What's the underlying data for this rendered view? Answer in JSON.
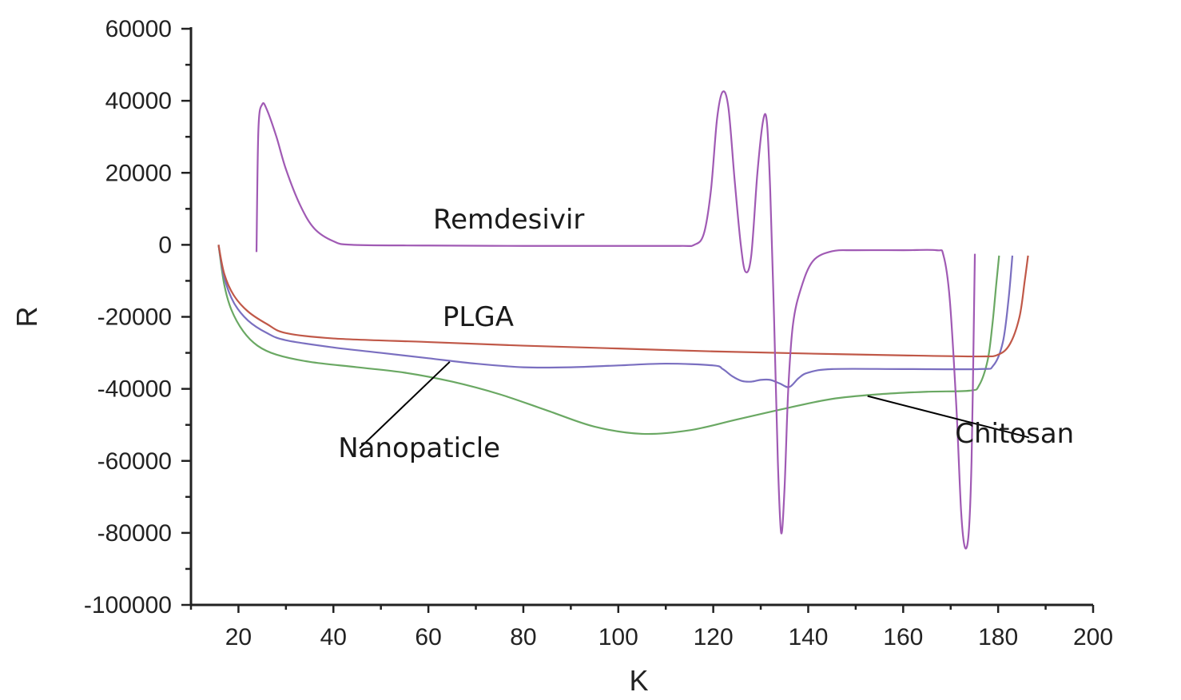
{
  "chart_data": {
    "type": "line",
    "xlabel": "K",
    "ylabel": "R",
    "xlim": [
      10,
      200
    ],
    "ylim": [
      -100000,
      60000
    ],
    "x_ticks": [
      20,
      40,
      60,
      80,
      100,
      120,
      140,
      160,
      180,
      200
    ],
    "y_ticks": [
      60000,
      40000,
      20000,
      0,
      -20000,
      -40000,
      -60000,
      -80000,
      -100000
    ],
    "y_tick_labels": [
      "60000",
      "40000",
      "20000",
      "0",
      "-20000",
      "-40000",
      "-60000",
      "-80000",
      "-100000"
    ],
    "grid": false,
    "series": [
      {
        "name": "Remdesivir",
        "color": "#a05ab4",
        "points": [
          [
            23.8,
            -2000
          ],
          [
            24.2,
            32000
          ],
          [
            25.0,
            39000
          ],
          [
            26.0,
            37500
          ],
          [
            28.0,
            30000
          ],
          [
            30.0,
            21000
          ],
          [
            33.0,
            11000
          ],
          [
            36.0,
            4500
          ],
          [
            40.0,
            1000
          ],
          [
            44.0,
            0
          ],
          [
            60.0,
            -200
          ],
          [
            80.0,
            -300
          ],
          [
            100.0,
            -300
          ],
          [
            113.0,
            -300
          ],
          [
            116.0,
            0
          ],
          [
            118.0,
            3000
          ],
          [
            119.5,
            15000
          ],
          [
            120.8,
            35000
          ],
          [
            122.0,
            42500
          ],
          [
            123.2,
            38000
          ],
          [
            124.5,
            18000
          ],
          [
            125.8,
            0
          ],
          [
            126.8,
            -7500
          ],
          [
            128.0,
            -3000
          ],
          [
            129.3,
            20000
          ],
          [
            130.5,
            34500
          ],
          [
            131.3,
            34000
          ],
          [
            132.0,
            15000
          ],
          [
            132.8,
            -20000
          ],
          [
            133.6,
            -60000
          ],
          [
            134.3,
            -80000
          ],
          [
            135.0,
            -68000
          ],
          [
            135.8,
            -40000
          ],
          [
            136.8,
            -22000
          ],
          [
            138.5,
            -12000
          ],
          [
            141.0,
            -4500
          ],
          [
            145.0,
            -1800
          ],
          [
            150.0,
            -1500
          ],
          [
            160.0,
            -1500
          ],
          [
            167.0,
            -1500
          ],
          [
            168.5,
            -3000
          ],
          [
            169.8,
            -15000
          ],
          [
            171.2,
            -45000
          ],
          [
            172.2,
            -74000
          ],
          [
            173.0,
            -84000
          ],
          [
            173.8,
            -80000
          ],
          [
            174.4,
            -60000
          ],
          [
            174.9,
            -20000
          ],
          [
            175.1,
            -2500
          ]
        ]
      },
      {
        "name": "PLGA",
        "color": "#c05848",
        "points": [
          [
            15.8,
            0
          ],
          [
            17.0,
            -8000
          ],
          [
            19.0,
            -14000
          ],
          [
            22.0,
            -18500
          ],
          [
            26.0,
            -22000
          ],
          [
            30.0,
            -24500
          ],
          [
            40.0,
            -26000
          ],
          [
            60.0,
            -27000
          ],
          [
            80.0,
            -28000
          ],
          [
            100.0,
            -28800
          ],
          [
            120.0,
            -29600
          ],
          [
            140.0,
            -30200
          ],
          [
            160.0,
            -30700
          ],
          [
            176.0,
            -31000
          ],
          [
            180.0,
            -30500
          ],
          [
            182.5,
            -27500
          ],
          [
            184.5,
            -20000
          ],
          [
            185.6,
            -10000
          ],
          [
            186.3,
            -3000
          ]
        ]
      },
      {
        "name": "Nanopaticle",
        "color": "#7a6fc0",
        "points": [
          [
            15.8,
            0
          ],
          [
            17.0,
            -9000
          ],
          [
            19.0,
            -16000
          ],
          [
            22.0,
            -21000
          ],
          [
            26.0,
            -24500
          ],
          [
            30.0,
            -26500
          ],
          [
            40.0,
            -28500
          ],
          [
            50.0,
            -30000
          ],
          [
            60.0,
            -31500
          ],
          [
            70.0,
            -33000
          ],
          [
            80.0,
            -34000
          ],
          [
            90.0,
            -34000
          ],
          [
            100.0,
            -33500
          ],
          [
            110.0,
            -33000
          ],
          [
            120.0,
            -33500
          ],
          [
            122.0,
            -34500
          ],
          [
            124.0,
            -36500
          ],
          [
            126.0,
            -37800
          ],
          [
            128.0,
            -38000
          ],
          [
            130.0,
            -37500
          ],
          [
            132.0,
            -37500
          ],
          [
            134.0,
            -38500
          ],
          [
            136.0,
            -39500
          ],
          [
            138.0,
            -37000
          ],
          [
            140.0,
            -35500
          ],
          [
            145.0,
            -34500
          ],
          [
            160.0,
            -34500
          ],
          [
            176.0,
            -34500
          ],
          [
            179.0,
            -33500
          ],
          [
            181.0,
            -27000
          ],
          [
            182.2,
            -15000
          ],
          [
            183.0,
            -3000
          ]
        ]
      },
      {
        "name": "Chitosan",
        "color": "#6aa863",
        "points": [
          [
            15.8,
            0
          ],
          [
            17.0,
            -11000
          ],
          [
            18.5,
            -18000
          ],
          [
            21.0,
            -24000
          ],
          [
            24.0,
            -28000
          ],
          [
            28.0,
            -30500
          ],
          [
            35.0,
            -32500
          ],
          [
            45.0,
            -34000
          ],
          [
            55.0,
            -35500
          ],
          [
            65.0,
            -38000
          ],
          [
            75.0,
            -41500
          ],
          [
            85.0,
            -46000
          ],
          [
            95.0,
            -50500
          ],
          [
            105.0,
            -52500
          ],
          [
            115.0,
            -51500
          ],
          [
            125.0,
            -48500
          ],
          [
            135.0,
            -45500
          ],
          [
            145.0,
            -42800
          ],
          [
            155.0,
            -41500
          ],
          [
            165.0,
            -40800
          ],
          [
            174.0,
            -40500
          ],
          [
            176.0,
            -39000
          ],
          [
            177.8,
            -32000
          ],
          [
            178.8,
            -22000
          ],
          [
            179.6,
            -11000
          ],
          [
            180.2,
            -3000
          ]
        ]
      }
    ],
    "annotations": [
      {
        "text": "Remdesivir",
        "series": "Remdesivir",
        "leader": false,
        "label_at": [
          61,
          4500
        ]
      },
      {
        "text": "PLGA",
        "series": "PLGA",
        "leader": false,
        "label_at": [
          63,
          -22500
        ]
      },
      {
        "text": "Nanopaticle",
        "series": "Nanopaticle",
        "leader": true,
        "label_at": [
          41,
          -59000
        ],
        "leader_from": [
          45.5,
          -56500
        ],
        "leader_to": [
          64.5,
          -32500
        ]
      },
      {
        "text": "Chitosan",
        "series": "Chitosan",
        "leader": true,
        "label_at": [
          196,
          -55000
        ],
        "leader_from": [
          186.5,
          -53500
        ],
        "leader_to": [
          152.5,
          -42000
        ]
      }
    ]
  }
}
